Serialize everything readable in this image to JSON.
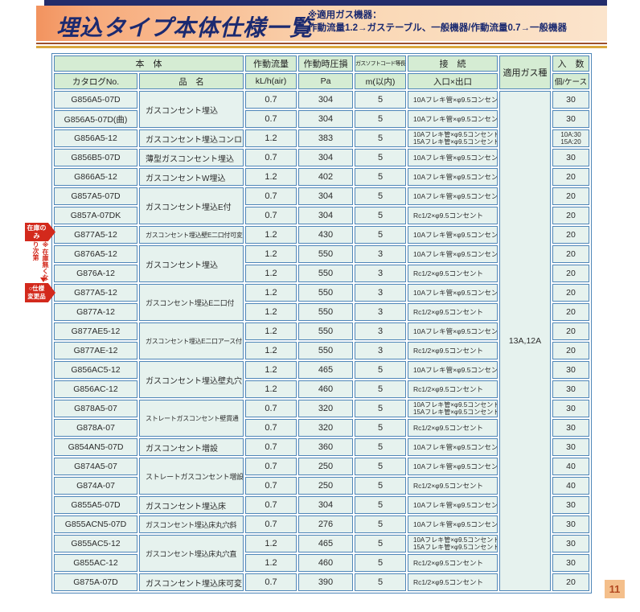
{
  "page": {
    "title": "埋込タイプ本体仕様一覧",
    "note_line1": "※適用ガス機器：",
    "note_line2": "作動流量1.2→ガステーブル、一般機器/作動流量0.7→一般機器",
    "page_number": "11"
  },
  "annotations": {
    "stock_only_flag": "在庫のみ",
    "stock_note_vertical": "※在庫無くなり次第",
    "spec_change_flag": "○仕様変更品"
  },
  "colors": {
    "accent_navy": "#1b2a70",
    "banner_orange": "#f7ab7c",
    "gold_rule": "#d9a73e",
    "table_border": "#4f86b8",
    "header_green": "#d5ecd3",
    "cell_bg": "#e6f2ee",
    "flag_red": "#d3291c",
    "page_number_bg": "#f4bf8b"
  },
  "table": {
    "header": {
      "body_group": "本　体",
      "catalog": "カタログNo.",
      "name": "品　名",
      "flow": "作動流量",
      "flow_unit": "kL/h(air)",
      "pressure": "作動時圧損",
      "pressure_unit": "Pa",
      "cord": "ガスソフトコード等長さ",
      "cord_unit": "m(以内)",
      "connection": "接　続",
      "connection_unit": "入口×出口",
      "gas_type": "適用ガス種",
      "qty": "入　数",
      "qty_unit": "個/ケース"
    },
    "gas_type_value": "13A,12A",
    "rows": [
      {
        "catalog": "G856A5-07D",
        "name": "ガスコンセント埋込",
        "name_span": 2,
        "flow": "0.7",
        "pressure": "304",
        "length": "5",
        "connection": [
          "10Aフレキ管×φ9.5コンセント"
        ],
        "qty": [
          "30"
        ]
      },
      {
        "catalog": "G856A5-07D(曲)",
        "flow": "0.7",
        "pressure": "304",
        "length": "5",
        "connection": [
          "10Aフレキ管×φ9.5コンセント"
        ],
        "qty": [
          "30"
        ]
      },
      {
        "catalog": "G856A5-12",
        "name": "ガスコンセント埋込コンロ",
        "name_span": 1,
        "flow": "1.2",
        "pressure": "383",
        "length": "5",
        "connection": [
          "10Aフレキ管×φ9.5コンセント",
          "15Aフレキ管×φ9.5コンセント"
        ],
        "qty": [
          "10A:30",
          "15A:20"
        ]
      },
      {
        "catalog": "G856B5-07D",
        "name": "薄型ガスコンセント埋込",
        "name_span": 1,
        "flow": "0.7",
        "pressure": "304",
        "length": "5",
        "connection": [
          "10Aフレキ管×φ9.5コンセント"
        ],
        "qty": [
          "30"
        ]
      },
      {
        "catalog": "G866A5-12",
        "name": "ガスコンセントW埋込",
        "name_span": 1,
        "flow": "1.2",
        "pressure": "402",
        "length": "5",
        "connection": [
          "10Aフレキ管×φ9.5コンセント"
        ],
        "qty": [
          "20"
        ]
      },
      {
        "catalog": "G857A5-07D",
        "name": "ガスコンセント埋込E付",
        "name_span": 2,
        "flow": "0.7",
        "pressure": "304",
        "length": "5",
        "connection": [
          "10Aフレキ管×φ9.5コンセント"
        ],
        "qty": [
          "20"
        ]
      },
      {
        "catalog": "G857A-07DK",
        "flow": "0.7",
        "pressure": "304",
        "length": "5",
        "connection": [
          "Rc1/2×φ9.5コンセント"
        ],
        "qty": [
          "20"
        ]
      },
      {
        "catalog": "G877A5-12",
        "name": "ガスコンセント埋込壁E二口付可変",
        "name_span": 1,
        "flow": "1.2",
        "pressure": "430",
        "length": "5",
        "connection": [
          "10Aフレキ管×φ9.5コンセント"
        ],
        "qty": [
          "20"
        ]
      },
      {
        "catalog": "G876A5-12",
        "name": "ガスコンセント埋込",
        "name_span": 2,
        "flow": "1.2",
        "pressure": "550",
        "length": "3",
        "connection": [
          "10Aフレキ管×φ9.5コンセント"
        ],
        "qty": [
          "20"
        ]
      },
      {
        "catalog": "G876A-12",
        "flow": "1.2",
        "pressure": "550",
        "length": "3",
        "connection": [
          "Rc1/2×φ9.5コンセント"
        ],
        "qty": [
          "20"
        ]
      },
      {
        "catalog": "G877A5-12",
        "name": "ガスコンセント埋込E二口付",
        "name_span": 2,
        "flow": "1.2",
        "pressure": "550",
        "length": "3",
        "connection": [
          "10Aフレキ管×φ9.5コンセント"
        ],
        "qty": [
          "20"
        ]
      },
      {
        "catalog": "G877A-12",
        "flow": "1.2",
        "pressure": "550",
        "length": "3",
        "connection": [
          "Rc1/2×φ9.5コンセント"
        ],
        "qty": [
          "20"
        ]
      },
      {
        "catalog": "G877AE5-12",
        "name": "ガスコンセント埋込E二口アース付",
        "name_span": 2,
        "flow": "1.2",
        "pressure": "550",
        "length": "3",
        "connection": [
          "10Aフレキ管×φ9.5コンセント"
        ],
        "qty": [
          "20"
        ]
      },
      {
        "catalog": "G877AE-12",
        "flow": "1.2",
        "pressure": "550",
        "length": "3",
        "connection": [
          "Rc1/2×φ9.5コンセント"
        ],
        "qty": [
          "20"
        ]
      },
      {
        "catalog": "G856AC5-12",
        "name": "ガスコンセント埋込壁丸穴",
        "name_span": 2,
        "flow": "1.2",
        "pressure": "465",
        "length": "5",
        "connection": [
          "10Aフレキ管×φ9.5コンセント"
        ],
        "qty": [
          "30"
        ]
      },
      {
        "catalog": "G856AC-12",
        "flow": "1.2",
        "pressure": "460",
        "length": "5",
        "connection": [
          "Rc1/2×φ9.5コンセント"
        ],
        "qty": [
          "30"
        ]
      },
      {
        "catalog": "G878A5-07",
        "name": "ストレートガスコンセント壁貫通",
        "name_span": 2,
        "flow": "0.7",
        "pressure": "320",
        "length": "5",
        "connection": [
          "10Aフレキ管×φ9.5コンセント",
          "15Aフレキ管×φ9.5コンセント"
        ],
        "qty": [
          "30"
        ]
      },
      {
        "catalog": "G878A-07",
        "flow": "0.7",
        "pressure": "320",
        "length": "5",
        "connection": [
          "Rc1/2×φ9.5コンセント"
        ],
        "qty": [
          "30"
        ]
      },
      {
        "catalog": "G854AN5-07D",
        "name": "ガスコンセント増設",
        "name_span": 1,
        "flow": "0.7",
        "pressure": "360",
        "length": "5",
        "connection": [
          "10Aフレキ管×φ9.5コンセント"
        ],
        "qty": [
          "30"
        ]
      },
      {
        "catalog": "G874A5-07",
        "name": "ストレートガスコンセント増設",
        "name_span": 2,
        "flow": "0.7",
        "pressure": "250",
        "length": "5",
        "connection": [
          "10Aフレキ管×φ9.5コンセント"
        ],
        "qty": [
          "40"
        ]
      },
      {
        "catalog": "G874A-07",
        "flow": "0.7",
        "pressure": "250",
        "length": "5",
        "connection": [
          "Rc1/2×φ9.5コンセント"
        ],
        "qty": [
          "40"
        ]
      },
      {
        "catalog": "G855A5-07D",
        "name": "ガスコンセント埋込床",
        "name_span": 1,
        "flow": "0.7",
        "pressure": "304",
        "length": "5",
        "connection": [
          "10Aフレキ管×φ9.5コンセント"
        ],
        "qty": [
          "30"
        ]
      },
      {
        "catalog": "G855ACN5-07D",
        "name": "ガスコンセント埋込床丸穴斜",
        "name_span": 1,
        "flow": "0.7",
        "pressure": "276",
        "length": "5",
        "connection": [
          "10Aフレキ管×φ9.5コンセント"
        ],
        "qty": [
          "30"
        ]
      },
      {
        "catalog": "G855AC5-12",
        "name": "ガスコンセント埋込床丸穴直",
        "name_span": 2,
        "flow": "1.2",
        "pressure": "465",
        "length": "5",
        "connection": [
          "10Aフレキ管×φ9.5コンセント",
          "15Aフレキ管×φ9.5コンセント"
        ],
        "qty": [
          "30"
        ]
      },
      {
        "catalog": "G855AC-12",
        "flow": "1.2",
        "pressure": "460",
        "length": "5",
        "connection": [
          "Rc1/2×φ9.5コンセント"
        ],
        "qty": [
          "30"
        ]
      },
      {
        "catalog": "G875A-07D",
        "name": "ガスコンセント埋込床可変",
        "name_span": 1,
        "flow": "0.7",
        "pressure": "390",
        "length": "5",
        "connection": [
          "Rc1/2×φ9.5コンセント"
        ],
        "qty": [
          "20"
        ]
      }
    ]
  }
}
